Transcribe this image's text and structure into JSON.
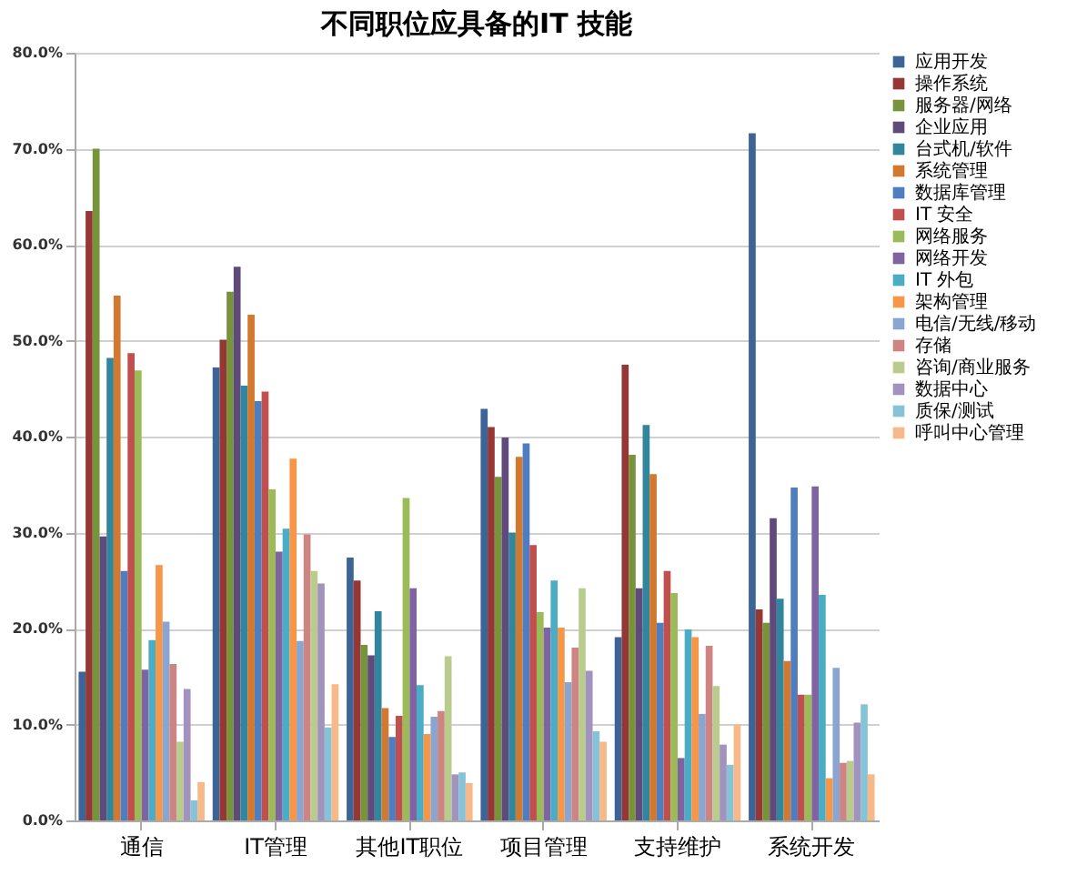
{
  "chart_data": {
    "type": "bar",
    "title": "不同职位应具备的IT  技能",
    "categories": [
      "通信",
      "IT管理",
      "其他IT职位",
      "项目管理",
      "支持维护",
      "系统开发"
    ],
    "ylim": [
      0,
      80
    ],
    "yticks": [
      {
        "value": 0,
        "label": "0.0%"
      },
      {
        "value": 10,
        "label": "10.0%"
      },
      {
        "value": 20,
        "label": "20.0%"
      },
      {
        "value": 30,
        "label": "30.0%"
      },
      {
        "value": 40,
        "label": "40.0%"
      },
      {
        "value": 50,
        "label": "50.0%"
      },
      {
        "value": 60,
        "label": "60.0%"
      },
      {
        "value": 70,
        "label": "70.0%"
      },
      {
        "value": 80,
        "label": "80.0%"
      }
    ],
    "grid": "y",
    "legend": "right",
    "series": [
      {
        "name": "应用开发",
        "color": "#3c6496",
        "values": [
          15.5,
          47.2,
          27.4,
          42.9,
          19.1,
          71.6
        ]
      },
      {
        "name": "操作系统",
        "color": "#953735",
        "values": [
          63.5,
          50.1,
          25.0,
          41.0,
          47.5,
          22.0
        ]
      },
      {
        "name": "服务器/网络",
        "color": "#77933c",
        "values": [
          70.0,
          55.1,
          18.3,
          35.8,
          38.1,
          20.6
        ]
      },
      {
        "name": "企业应用",
        "color": "#604a7b",
        "values": [
          29.6,
          57.7,
          17.2,
          39.9,
          24.2,
          31.5
        ]
      },
      {
        "name": "台式机/软件",
        "color": "#31859c",
        "values": [
          48.2,
          45.3,
          21.8,
          30.0,
          41.2,
          23.1
        ]
      },
      {
        "name": "系统管理",
        "color": "#d2792f",
        "values": [
          54.7,
          52.7,
          11.7,
          37.9,
          36.1,
          16.6
        ]
      },
      {
        "name": "数据库管理",
        "color": "#4f7ec0",
        "values": [
          26.0,
          43.7,
          8.7,
          39.3,
          20.6,
          34.7
        ]
      },
      {
        "name": "IT 安全",
        "color": "#c0504d",
        "values": [
          48.7,
          44.7,
          10.9,
          28.7,
          26.0,
          13.1
        ]
      },
      {
        "name": "网络服务",
        "color": "#9bbb59",
        "values": [
          46.9,
          34.5,
          33.6,
          21.7,
          23.7,
          13.1
        ]
      },
      {
        "name": "网络开发",
        "color": "#8064a2",
        "values": [
          15.7,
          28.0,
          24.2,
          20.1,
          6.5,
          34.8
        ]
      },
      {
        "name": "IT 外包",
        "color": "#4bacc6",
        "values": [
          18.8,
          30.4,
          14.1,
          25.0,
          19.9,
          23.5
        ]
      },
      {
        "name": "架构管理",
        "color": "#f79646",
        "values": [
          26.6,
          37.7,
          9.0,
          20.1,
          19.1,
          4.4
        ]
      },
      {
        "name": "电信/无线/移动",
        "color": "#8aa6d0",
        "values": [
          20.7,
          18.7,
          10.8,
          14.4,
          11.1,
          15.9
        ]
      },
      {
        "name": "存储",
        "color": "#cd8482",
        "values": [
          16.3,
          29.8,
          11.4,
          18.0,
          18.2,
          6.0
        ]
      },
      {
        "name": "咨询/商业服务",
        "color": "#b9cc8e",
        "values": [
          8.2,
          26.0,
          17.1,
          24.2,
          14.0,
          6.2
        ]
      },
      {
        "name": "数据中心",
        "color": "#a193bd",
        "values": [
          13.7,
          24.7,
          4.8,
          15.6,
          7.9,
          10.2
        ]
      },
      {
        "name": "质保/测试",
        "color": "#86c3d6",
        "values": [
          2.1,
          9.7,
          5.0,
          9.3,
          5.8,
          12.1
        ]
      },
      {
        "name": "呼叫中心管理",
        "color": "#f7b88a",
        "values": [
          4.0,
          14.2,
          3.9,
          8.2,
          10.0,
          4.8
        ]
      }
    ]
  }
}
